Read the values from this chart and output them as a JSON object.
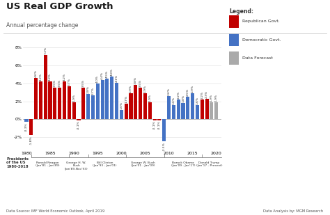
{
  "title": "US Real GDP Growth",
  "subtitle": "Annual percentage change",
  "years": [
    1980,
    1981,
    1982,
    1983,
    1984,
    1985,
    1986,
    1987,
    1988,
    1989,
    1990,
    1991,
    1992,
    1993,
    1994,
    1995,
    1996,
    1997,
    1998,
    1999,
    2000,
    2001,
    2002,
    2003,
    2004,
    2005,
    2006,
    2007,
    2008,
    2009,
    2010,
    2011,
    2012,
    2013,
    2014,
    2015,
    2016,
    2017,
    2018,
    2019,
    2020
  ],
  "values": [
    -0.3,
    -1.8,
    4.6,
    4.2,
    7.2,
    4.2,
    3.5,
    3.5,
    4.2,
    3.7,
    1.9,
    -0.1,
    3.5,
    2.8,
    2.7,
    4.0,
    4.4,
    4.5,
    4.8,
    4.1,
    1.0,
    1.7,
    2.9,
    3.8,
    3.5,
    2.9,
    1.9,
    -0.1,
    -0.1,
    -2.5,
    2.6,
    1.6,
    2.2,
    1.8,
    2.5,
    2.9,
    1.6,
    2.2,
    2.3,
    1.9,
    1.9
  ],
  "labels": [
    "-0.3%",
    "-1.8%",
    "4.6%",
    "4.2%",
    "7.2%",
    "4.2%",
    "3.5%",
    "3.5%",
    "4.2%",
    "3.7%",
    "1.9%",
    "-0.1%",
    "3.5%",
    "2.8%",
    "2.7%",
    "4.0%",
    "4.4%",
    "4.5%",
    "4.8%",
    "4.1%",
    "1.0%",
    "1.7%",
    "2.9%",
    "3.8%",
    "3.5%",
    "2.9%",
    "1.9%",
    "-0.1%",
    "-0.1%",
    "-2.5%",
    "2.6%",
    "1.6%",
    "2.2%",
    "1.8%",
    "2.5%",
    "2.9%",
    "1.6%",
    "2.2%",
    "2.3%",
    "1.9%",
    "1.9%"
  ],
  "colors": [
    "#4472C4",
    "#C00000",
    "#C00000",
    "#C00000",
    "#C00000",
    "#C00000",
    "#C00000",
    "#C00000",
    "#C00000",
    "#C00000",
    "#C00000",
    "#C00000",
    "#C00000",
    "#4472C4",
    "#4472C4",
    "#4472C4",
    "#4472C4",
    "#4472C4",
    "#4472C4",
    "#4472C4",
    "#4472C4",
    "#C00000",
    "#C00000",
    "#C00000",
    "#C00000",
    "#C00000",
    "#C00000",
    "#C00000",
    "#C00000",
    "#4472C4",
    "#4472C4",
    "#4472C4",
    "#4472C4",
    "#4472C4",
    "#4472C4",
    "#4472C4",
    "#4472C4",
    "#C00000",
    "#C00000",
    "#AAAAAA",
    "#AAAAAA"
  ],
  "president_sections": [
    {
      "text": "Ronald Reagan\n(Jan'81 - Jan'89)",
      "x_center": 1984.5,
      "xmin": 1981,
      "xmax": 1989
    },
    {
      "text": "George H. W.\nBush\n(Jan'89-Nov'93)",
      "x_center": 1990.5,
      "xmin": 1989,
      "xmax": 1993
    },
    {
      "text": "Bill Clinton\n(Jan'93 - Jan'01)",
      "x_center": 1996.5,
      "xmin": 1993,
      "xmax": 2001
    },
    {
      "text": "George W. Bush\n(Jan'01 - Jan'09)",
      "x_center": 2004.5,
      "xmin": 2001,
      "xmax": 2009
    },
    {
      "text": "Barack Obama\n(Jan'09 - Jan'17)",
      "x_center": 2013.0,
      "xmin": 2009,
      "xmax": 2017
    },
    {
      "text": "Donald Trump\n(Jan'17 - Present)",
      "x_center": 2018.5,
      "xmin": 2017,
      "xmax": 2021
    }
  ],
  "footer_left": "Data Source: IMF World Economic Outlook, April 2019",
  "footer_right": "Data Analysis by: MGM Research",
  "legend_title": "Legend:",
  "legend_items": [
    {
      "label": "Republican Govt.",
      "color": "#C00000"
    },
    {
      "label": "Democratic Govt.",
      "color": "#4472C4"
    },
    {
      "label": "Data Forecast",
      "color": "#AAAAAA"
    }
  ],
  "ylim": [
    -3.5,
    9.0
  ],
  "yticks": [
    -2,
    0,
    2,
    4,
    6,
    8
  ],
  "xlim": [
    1979.3,
    2021.0
  ],
  "xticks": [
    1980,
    1985,
    1990,
    1995,
    2000,
    2005,
    2010,
    2015,
    2020
  ],
  "background_color": "#FFFFFF",
  "bar_width": 0.75
}
